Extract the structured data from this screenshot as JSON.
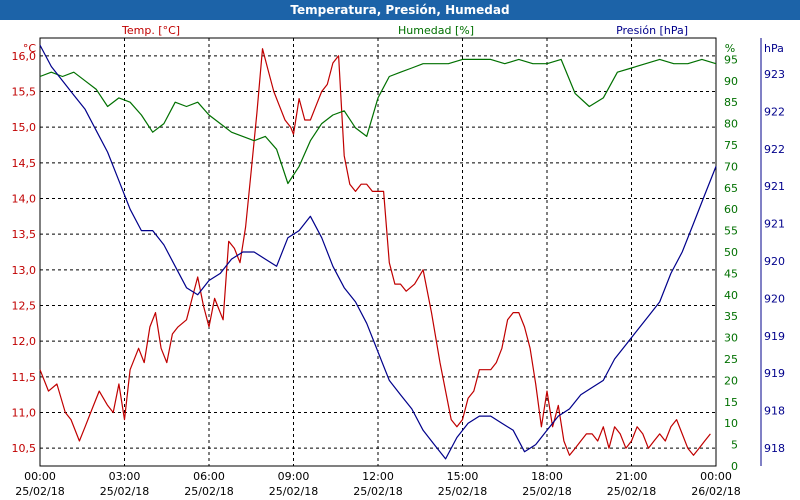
{
  "window": {
    "title": "Temperatura, Presión, Humedad"
  },
  "chart_data": {
    "type": "line",
    "title": "Temperatura, Presión, Humedad",
    "grid": true,
    "x_ticks": [
      {
        "time": "00:00",
        "date": "25/02/18"
      },
      {
        "time": "03:00",
        "date": "25/02/18"
      },
      {
        "time": "06:00",
        "date": "25/02/18"
      },
      {
        "time": "09:00",
        "date": "25/02/18"
      },
      {
        "time": "12:00",
        "date": "25/02/18"
      },
      {
        "time": "15:00",
        "date": "25/02/18"
      },
      {
        "time": "18:00",
        "date": "25/02/18"
      },
      {
        "time": "21:00",
        "date": "25/02/18"
      },
      {
        "time": "00:00",
        "date": "26/02/18"
      }
    ],
    "x_hours_range": [
      0,
      24
    ],
    "axes": {
      "temp": {
        "title": "Temp. [°C]",
        "unit": "°C",
        "color": "#c00000",
        "range": [
          10.25,
          16.25
        ],
        "ticks": [
          "10,5",
          "11,0",
          "11,5",
          "12,0",
          "12,5",
          "13,0",
          "13,5",
          "14,0",
          "14,5",
          "15,0",
          "15,5",
          "16,0"
        ]
      },
      "hum": {
        "title": "Humedad [%]",
        "unit": "%",
        "color": "#007000",
        "range": [
          0,
          100
        ],
        "ticks": [
          "0",
          "5",
          "10",
          "15",
          "20",
          "25",
          "30",
          "35",
          "40",
          "45",
          "50",
          "55",
          "60",
          "65",
          "70",
          "75",
          "80",
          "85",
          "90",
          "95"
        ]
      },
      "pres": {
        "title": "Presión [hPa]",
        "unit": "hPa",
        "color": "#00008b",
        "range": [
          917.8,
          923.8
        ],
        "ticks": [
          "918",
          "918",
          "919",
          "919",
          "920",
          "920",
          "921",
          "921",
          "922",
          "922",
          "923"
        ]
      }
    },
    "series": [
      {
        "name": "Temp. [°C]",
        "axis": "temp",
        "color": "#c00000",
        "x": [
          0,
          0.3,
          0.6,
          0.9,
          1.1,
          1.4,
          1.6,
          1.8,
          2.1,
          2.4,
          2.6,
          2.8,
          3.0,
          3.2,
          3.5,
          3.7,
          3.9,
          4.1,
          4.3,
          4.5,
          4.7,
          4.9,
          5.2,
          5.4,
          5.6,
          5.8,
          6.0,
          6.2,
          6.5,
          6.7,
          6.9,
          7.1,
          7.3,
          7.5,
          7.7,
          7.9,
          8.1,
          8.3,
          8.5,
          8.7,
          8.9,
          9.0,
          9.2,
          9.4,
          9.6,
          9.8,
          10.0,
          10.2,
          10.4,
          10.6,
          10.8,
          11.0,
          11.2,
          11.4,
          11.6,
          11.8,
          12.0,
          12.2,
          12.4,
          12.6,
          12.8,
          13.0,
          13.3,
          13.6,
          13.9,
          14.2,
          14.4,
          14.6,
          14.8,
          15.0,
          15.2,
          15.4,
          15.6,
          15.8,
          16.0,
          16.2,
          16.4,
          16.6,
          16.8,
          17.0,
          17.2,
          17.4,
          17.6,
          17.8,
          18.0,
          18.2,
          18.4,
          18.6,
          18.8,
          19.0,
          19.2,
          19.4,
          19.6,
          19.8,
          20.0,
          20.2,
          20.4,
          20.6,
          20.8,
          21.0,
          21.2,
          21.4,
          21.6,
          21.8,
          22.0,
          22.2,
          22.4,
          22.6,
          22.8,
          23.0,
          23.2,
          23.4,
          23.6,
          23.8
        ],
        "values": [
          11.6,
          11.3,
          11.4,
          11.0,
          10.9,
          10.6,
          10.8,
          11.0,
          11.3,
          11.1,
          11.0,
          11.4,
          10.9,
          11.6,
          11.9,
          11.7,
          12.2,
          12.4,
          11.9,
          11.7,
          12.1,
          12.2,
          12.3,
          12.6,
          12.9,
          12.5,
          12.2,
          12.6,
          12.3,
          13.4,
          13.3,
          13.1,
          13.6,
          14.4,
          15.2,
          16.1,
          15.8,
          15.5,
          15.3,
          15.1,
          15.0,
          14.9,
          15.4,
          15.1,
          15.1,
          15.3,
          15.5,
          15.6,
          15.9,
          16.0,
          14.6,
          14.2,
          14.1,
          14.2,
          14.2,
          14.1,
          14.1,
          14.1,
          13.1,
          12.8,
          12.8,
          12.7,
          12.8,
          13.0,
          12.4,
          11.7,
          11.3,
          10.9,
          10.8,
          10.9,
          11.2,
          11.3,
          11.6,
          11.6,
          11.6,
          11.7,
          11.9,
          12.3,
          12.4,
          12.4,
          12.2,
          11.9,
          11.4,
          10.8,
          11.3,
          10.8,
          11.1,
          10.6,
          10.4,
          10.5,
          10.6,
          10.7,
          10.7,
          10.6,
          10.8,
          10.5,
          10.8,
          10.7,
          10.5,
          10.6,
          10.8,
          10.7,
          10.5,
          10.6,
          10.7,
          10.6,
          10.8,
          10.9,
          10.7,
          10.5,
          10.4,
          10.5,
          10.6,
          10.7
        ]
      },
      {
        "name": "Humedad [%]",
        "axis": "hum",
        "color": "#007000",
        "x": [
          0,
          0.4,
          0.8,
          1.2,
          1.6,
          2.0,
          2.4,
          2.8,
          3.2,
          3.6,
          4.0,
          4.4,
          4.8,
          5.2,
          5.6,
          6.0,
          6.4,
          6.8,
          7.2,
          7.6,
          8.0,
          8.4,
          8.8,
          9.2,
          9.6,
          10.0,
          10.4,
          10.8,
          11.2,
          11.6,
          12.0,
          12.4,
          12.8,
          13.2,
          13.6,
          14.0,
          14.5,
          15.0,
          15.5,
          16.0,
          16.5,
          17.0,
          17.5,
          18.0,
          18.5,
          19.0,
          19.5,
          20.0,
          20.5,
          21.0,
          21.5,
          22.0,
          22.5,
          23.0,
          23.5,
          24.0
        ],
        "values": [
          91,
          92,
          91,
          92,
          90,
          88,
          84,
          86,
          85,
          82,
          78,
          80,
          85,
          84,
          85,
          82,
          80,
          78,
          77,
          76,
          77,
          74,
          66,
          70,
          76,
          80,
          82,
          83,
          79,
          77,
          86,
          91,
          92,
          93,
          94,
          94,
          94,
          95,
          95,
          95,
          94,
          95,
          94,
          94,
          95,
          87,
          84,
          86,
          92,
          93,
          94,
          95,
          94,
          94,
          95,
          94
        ]
      },
      {
        "name": "Presión [hPa]",
        "axis": "pres",
        "color": "#00008b",
        "x": [
          0,
          0.4,
          0.8,
          1.2,
          1.6,
          2.0,
          2.4,
          2.8,
          3.2,
          3.6,
          4.0,
          4.4,
          4.8,
          5.2,
          5.6,
          6.0,
          6.4,
          6.8,
          7.2,
          7.6,
          8.0,
          8.4,
          8.8,
          9.2,
          9.6,
          10.0,
          10.4,
          10.8,
          11.2,
          11.6,
          12.0,
          12.4,
          12.8,
          13.2,
          13.6,
          14.0,
          14.4,
          14.8,
          15.2,
          15.6,
          16.0,
          16.4,
          16.8,
          17.2,
          17.6,
          18.0,
          18.4,
          18.8,
          19.2,
          19.6,
          20.0,
          20.4,
          20.8,
          21.2,
          21.6,
          22.0,
          22.4,
          22.8,
          23.2,
          23.6,
          24.0
        ],
        "values": [
          923.7,
          923.4,
          923.2,
          923.0,
          922.8,
          922.5,
          922.2,
          921.8,
          921.4,
          921.1,
          921.1,
          920.9,
          920.6,
          920.3,
          920.2,
          920.4,
          920.5,
          920.7,
          920.8,
          920.8,
          920.7,
          920.6,
          921.0,
          921.1,
          921.3,
          921.0,
          920.6,
          920.3,
          920.1,
          919.8,
          919.4,
          919.0,
          918.8,
          918.6,
          918.3,
          918.1,
          917.9,
          918.2,
          918.4,
          918.5,
          918.5,
          918.4,
          918.3,
          918.0,
          918.1,
          918.3,
          918.5,
          918.6,
          918.8,
          918.9,
          919.0,
          919.3,
          919.5,
          919.7,
          919.9,
          920.1,
          920.5,
          920.8,
          921.2,
          921.6,
          922.0
        ]
      }
    ]
  }
}
